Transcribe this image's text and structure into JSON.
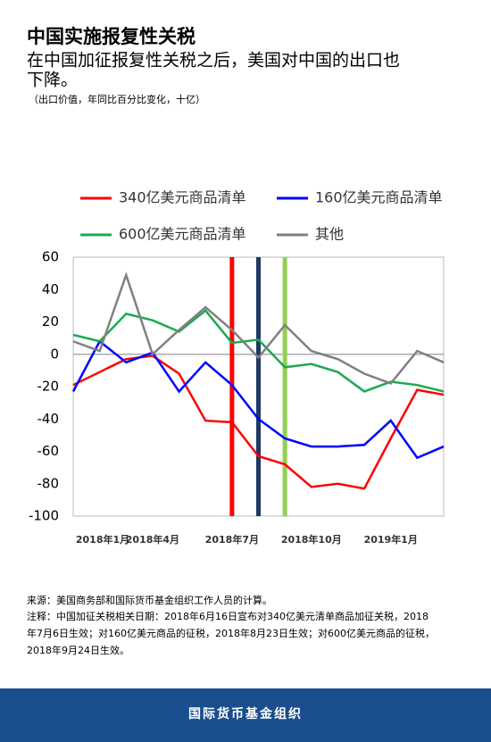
{
  "chart_data": {
    "type": "line",
    "title": "中国实施报复性关税",
    "subtitle": [
      "在中国加征报复性关税之后，美国对中国的出口也",
      "下降。"
    ],
    "unit_note": "（出口价值，年同比百分比变化，十亿）",
    "categories": [
      "2018年1月",
      null,
      null,
      "2018年4月",
      null,
      null,
      "2018年7月",
      null,
      null,
      "2018年10月",
      null,
      null,
      "2019年1月",
      null,
      null
    ],
    "series": [
      {
        "name": "340亿美元商品清单",
        "color": "#ff0000",
        "values": [
          -19,
          -11,
          -3,
          -1,
          -12,
          -41,
          -42,
          -63,
          -68,
          -82,
          -80,
          -83,
          -52,
          -22,
          -25
        ]
      },
      {
        "name": "160亿美元商品清单",
        "color": "#0000ff",
        "values": [
          -23,
          8,
          -5,
          1,
          -23,
          -5,
          -19,
          -40,
          -52,
          -57,
          -57,
          -56,
          -41,
          -64,
          -57
        ]
      },
      {
        "name": "600亿美元商品清单",
        "color": "#1aaa50",
        "values": [
          12,
          8,
          25,
          21,
          14,
          27,
          7,
          9,
          -8,
          -6,
          -11,
          -23,
          -17,
          -19,
          -23
        ]
      },
      {
        "name": "其他",
        "color": "#808080",
        "values": [
          8,
          2,
          49,
          0,
          15,
          29,
          15,
          -2,
          18,
          2,
          -3,
          -12,
          -18,
          2,
          -5
        ]
      }
    ],
    "events": [
      {
        "x": 6,
        "color": "#ff0000"
      },
      {
        "x": 7,
        "color": "#1f3864"
      },
      {
        "x": 8,
        "color": "#92d050"
      }
    ],
    "ylim": [
      -100,
      60
    ],
    "yticks": [
      60,
      40,
      20,
      0,
      -20,
      -40,
      -60,
      -80,
      -100
    ],
    "zero_line": true,
    "source": "来源：美国商务部和国际货币基金组织工作人员的计算。",
    "note": [
      "注释：中国加征关税相关日期：2018年6月16日宣布对340亿美元清单商品加征关税，2018",
      "年7月6日生效；对160亿美元商品的征税，2018年8月23日生效；对600亿美元商品的征税，",
      "2018年9月24日生效。"
    ],
    "footer": "国际货币基金组织"
  }
}
